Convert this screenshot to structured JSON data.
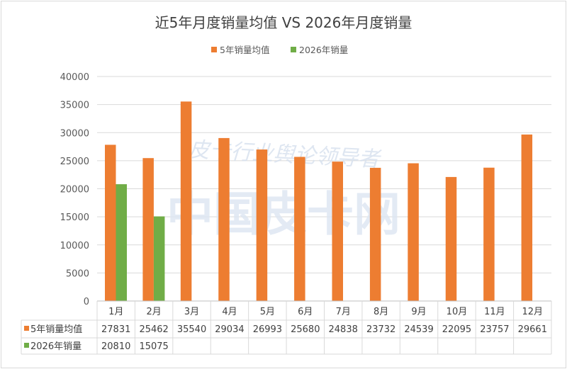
{
  "chart_data": {
    "type": "bar",
    "title": "近5年月度销量均值 VS 2026年月度销量",
    "categories": [
      "1月",
      "2月",
      "3月",
      "4月",
      "5月",
      "6月",
      "7月",
      "8月",
      "9月",
      "10月",
      "11月",
      "12月"
    ],
    "series": [
      {
        "name": "5年销量均值",
        "color": "#ED7D31",
        "values": [
          27831,
          25462,
          35540,
          29034,
          26993,
          25680,
          24838,
          23732,
          24539,
          22095,
          23757,
          29661
        ]
      },
      {
        "name": "2026年销量",
        "color": "#70AD47",
        "values": [
          20810,
          15075,
          null,
          null,
          null,
          null,
          null,
          null,
          null,
          null,
          null,
          null
        ]
      }
    ],
    "ylim": [
      0,
      40000
    ],
    "yticks": [
      0,
      5000,
      10000,
      15000,
      20000,
      25000,
      30000,
      35000,
      40000
    ],
    "grid": true,
    "legend": "top",
    "data_table": true,
    "watermark": [
      "皮卡行业舆论领导者",
      "中国皮卡网"
    ]
  }
}
